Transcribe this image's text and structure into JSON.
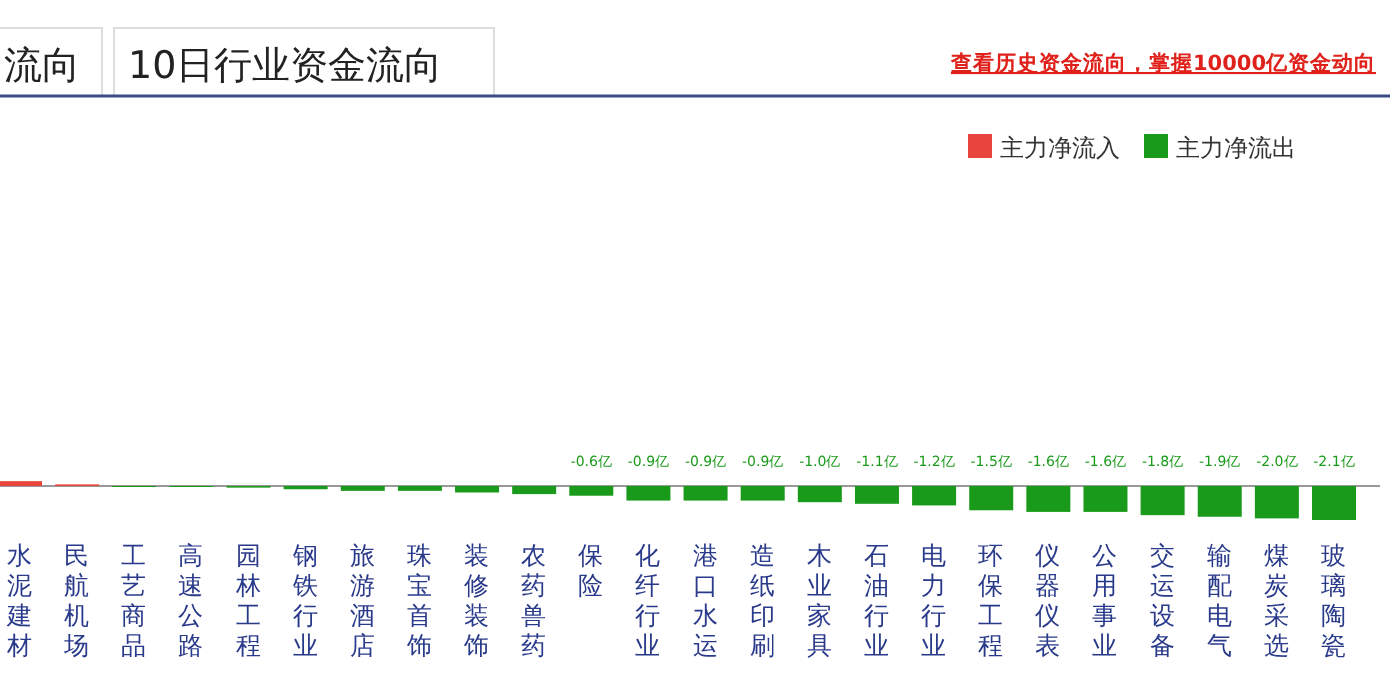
{
  "chart_data": {
    "type": "bar",
    "title": "10日行业资金流向",
    "annotations": [
      "流向",
      "查看历史资金流向，掌握10000亿资金动向"
    ],
    "categories": [
      "水泥建材",
      "民航机场",
      "工艺商品",
      "高速公路",
      "园林工程",
      "钢铁行业",
      "旅游酒店",
      "珠宝首饰",
      "装修装饰",
      "农药兽药",
      "保险",
      "化纤行业",
      "港口水运",
      "造纸印刷",
      "木业家具",
      "石油行业",
      "电力行业",
      "环保工程",
      "仪器仪表",
      "公用事业",
      "交运设备",
      "输配电气",
      "煤炭采选",
      "玻璃陶瓷"
    ],
    "series": [
      {
        "name": "主力净流入",
        "color": "#e8453c",
        "values": [
          0.3,
          0.1,
          null,
          null,
          null,
          null,
          null,
          null,
          null,
          null,
          null,
          null,
          null,
          null,
          null,
          null,
          null,
          null,
          null,
          null,
          null,
          null,
          null,
          null
        ]
      },
      {
        "name": "主力净流出",
        "color": "#1a9a1a",
        "values": [
          null,
          null,
          -0.02,
          -0.05,
          -0.1,
          -0.2,
          -0.3,
          -0.3,
          -0.4,
          -0.5,
          -0.6,
          -0.9,
          -0.9,
          -0.9,
          -1.0,
          -1.1,
          -1.2,
          -1.5,
          -1.6,
          -1.6,
          -1.8,
          -1.9,
          -2.0,
          -2.1
        ],
        "value_labels": [
          null,
          null,
          null,
          null,
          null,
          null,
          null,
          null,
          null,
          null,
          "-0.6亿",
          "-0.9亿",
          "-0.9亿",
          "-0.9亿",
          "-1.0亿",
          "-1.1亿",
          "-1.2亿",
          "-1.5亿",
          "-1.6亿",
          "-1.6亿",
          "-1.8亿",
          "-1.9亿",
          "-2.0亿",
          "-2.1亿"
        ]
      }
    ],
    "legend": "top right"
  }
}
